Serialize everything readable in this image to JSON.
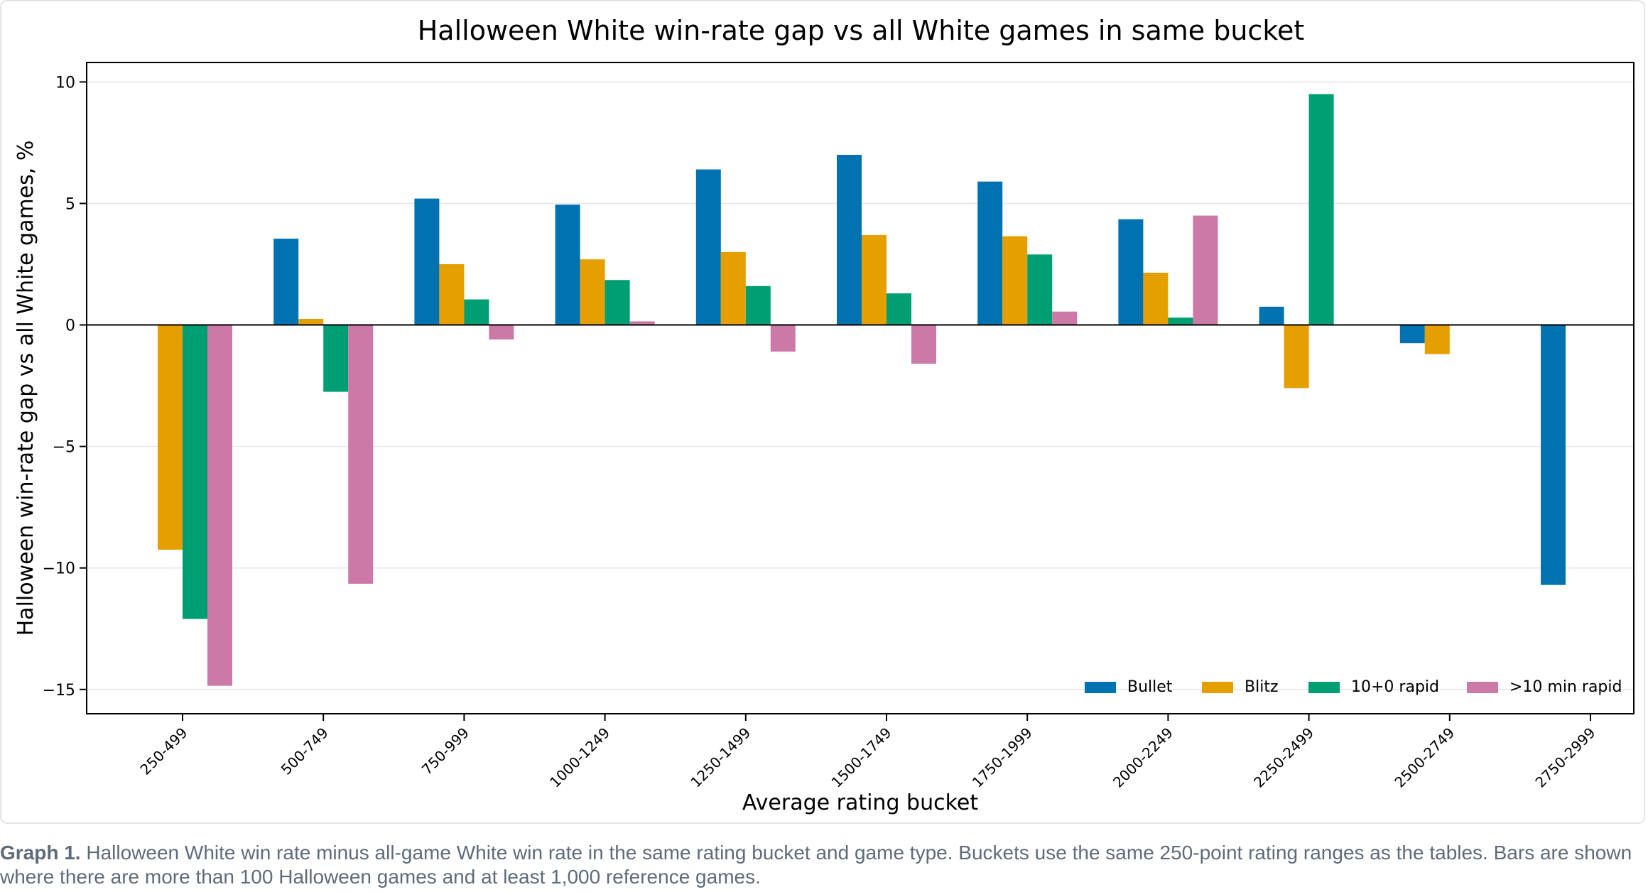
{
  "chart_data": {
    "type": "bar",
    "title": "Halloween White win-rate gap vs all White games in same bucket",
    "xlabel": "Average rating bucket",
    "ylabel": "Halloween win-rate gap vs all White games, %",
    "ylim": [
      -16,
      10.8
    ],
    "yticks": [
      10,
      5,
      0,
      -5,
      -10,
      -15
    ],
    "ytick_labels": [
      "10",
      "5",
      "0",
      "−5",
      "−10",
      "−15"
    ],
    "grid": true,
    "legend_position": "bottom-right",
    "categories": [
      "250-499",
      "500-749",
      "750-999",
      "1000-1249",
      "1250-1499",
      "1500-1749",
      "1750-1999",
      "2000-2249",
      "2250-2499",
      "2500-2749",
      "2750-2999"
    ],
    "series": [
      {
        "name": "Bullet",
        "color": "#0072b2",
        "values": [
          null,
          3.55,
          5.2,
          4.95,
          6.4,
          7.0,
          5.9,
          4.35,
          0.75,
          -0.75,
          -10.7
        ]
      },
      {
        "name": "Blitz",
        "color": "#e69f00",
        "values": [
          -9.25,
          0.25,
          2.5,
          2.7,
          3.0,
          3.7,
          3.65,
          2.15,
          -2.6,
          -1.2,
          null
        ]
      },
      {
        "name": "10+0 rapid",
        "color": "#009e73",
        "values": [
          -12.1,
          -2.75,
          1.05,
          1.85,
          1.6,
          1.3,
          2.9,
          0.3,
          9.5,
          null,
          null
        ]
      },
      {
        "name": ">10 min rapid",
        "color": "#cc79a7",
        "values": [
          -14.85,
          -10.65,
          -0.6,
          0.15,
          -1.1,
          -1.6,
          0.55,
          4.5,
          null,
          null,
          null
        ]
      }
    ]
  },
  "caption": {
    "label": "Graph 1.",
    "text": " Halloween White win rate minus all-game White win rate in the same rating bucket and game type. Buckets use the same 250-point rating ranges as the tables. Bars are shown where there are more than 100 Halloween games and at least 1,000 reference games."
  }
}
